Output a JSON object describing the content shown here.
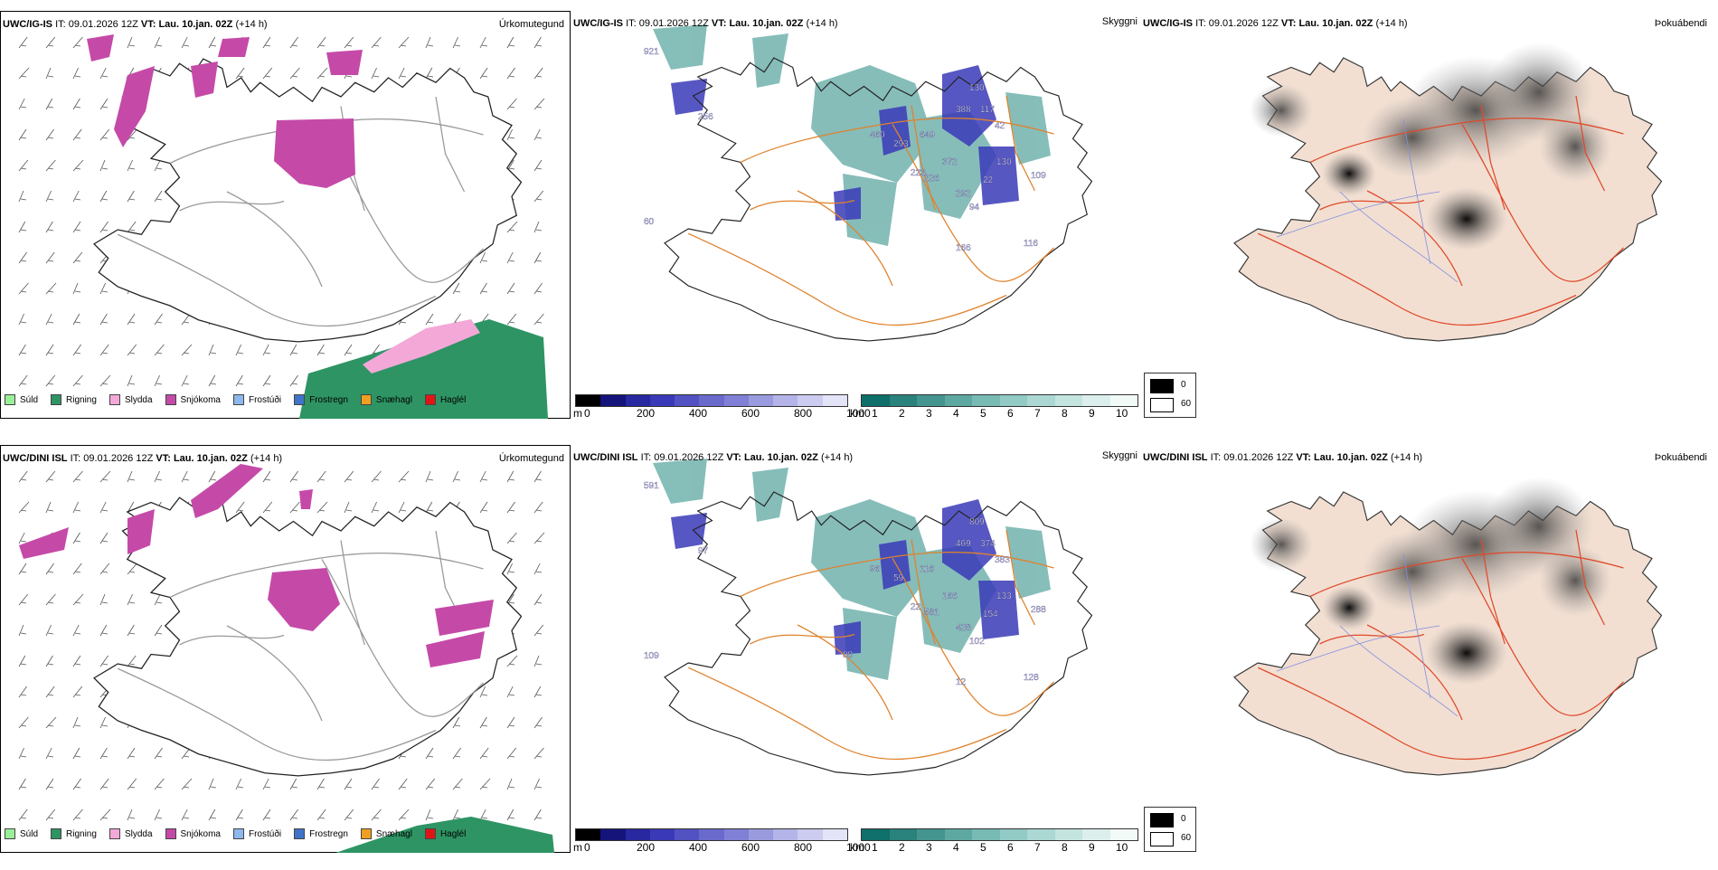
{
  "rows": [
    {
      "model": "UWC/IG-IS",
      "it_label": "IT:",
      "it_value": "09.01.2026 12Z",
      "vt_label": "VT:",
      "vt_value": "Lau. 10.jan. 02Z",
      "lead": "(+14 h)"
    },
    {
      "model": "UWC/DINI ISL",
      "it_label": "IT:",
      "it_value": "09.01.2026 12Z",
      "vt_label": "VT:",
      "vt_value": "Lau. 10.jan. 02Z",
      "lead": "(+14 h)"
    }
  ],
  "panel_titles": {
    "precip": "Úrkomutegund",
    "cloud": "Skyggni",
    "fog": "Þokuábendi"
  },
  "precip_legend": [
    {
      "label": "Súld",
      "color": "#98f098"
    },
    {
      "label": "Rigning",
      "color": "#2e9464"
    },
    {
      "label": "Slydda",
      "color": "#f3a8d8"
    },
    {
      "label": "Snjókoma",
      "color": "#c54aa8"
    },
    {
      "label": "Frostúði",
      "color": "#8cb8ee"
    },
    {
      "label": "Frostregn",
      "color": "#3f74c8"
    },
    {
      "label": "Snæhagl",
      "color": "#efa020"
    },
    {
      "label": "Haglél",
      "color": "#e01616"
    }
  ],
  "cloud_base": {
    "unit": "m",
    "ticks": [
      "0",
      "200",
      "400",
      "600",
      "800",
      "1000"
    ],
    "colors": [
      "#000000",
      "#14147a",
      "#2828a0",
      "#3a3ab8",
      "#5252c2",
      "#6a6acc",
      "#8080d6",
      "#9a9ade",
      "#b4b4e8",
      "#ccccf0",
      "#e4e4f8"
    ]
  },
  "visibility": {
    "unit": "km",
    "ticks": [
      "1",
      "2",
      "3",
      "4",
      "5",
      "6",
      "7",
      "8",
      "9",
      "10"
    ],
    "colors": [
      "#0f6f6a",
      "#2a827c",
      "#449590",
      "#5ea8a2",
      "#78bab4",
      "#92cac5",
      "#acd8d4",
      "#c4e4e0",
      "#dcefec",
      "#f2faf8"
    ]
  },
  "fog_key": [
    {
      "label": "0",
      "color": "#000000"
    },
    {
      "label": "60",
      "color": "#ffffff"
    }
  ],
  "cloud_labels_top": [
    "921",
    "256",
    "460",
    "293",
    "649",
    "388",
    "117",
    "130",
    "42",
    "223",
    "226",
    "372",
    "292",
    "94",
    "22",
    "130",
    "109",
    "166",
    "116",
    "60"
  ],
  "cloud_labels_bottom": [
    "591",
    "97",
    "96",
    "59",
    "116",
    "469",
    "374",
    "809",
    "383",
    "22",
    "581",
    "166",
    "428",
    "102",
    "154",
    "133",
    "288",
    "12",
    "128",
    "109",
    "88"
  ]
}
